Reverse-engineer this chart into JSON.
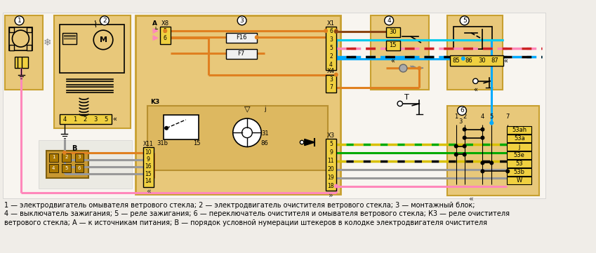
{
  "bg": "#f0ede8",
  "lt_tan": "#e8c87a",
  "tan": "#c8a030",
  "yellow": "#f0d040",
  "white": "#ffffff",
  "black": "#000000",
  "col_orange": "#e08020",
  "col_blue": "#00aaff",
  "col_pink": "#ff88bb",
  "col_red_dashed": "#cc2222",
  "col_cyan": "#00ccee",
  "col_yellow_wire": "#d8c000",
  "col_green": "#00aa00",
  "col_gray": "#999999",
  "col_brown": "#8b4513",
  "col_black_dashed": "#111111",
  "caption": "1 — электродвигатель омывателя ветрового стекла; 2 — электродвигатель очистителя ветрового стекла; 3 — монтажный блок;",
  "caption2": "4 — выключатель зажигания; 5 — реле зажигания; 6 — переключатель очистителя и омывателя ветрового стекла; К3 — реле очистителя",
  "caption3": "ветрового стекла; А — к источникам питания; В — порядок условной нумерации штекеров в колодке электродвигателя очистителя"
}
